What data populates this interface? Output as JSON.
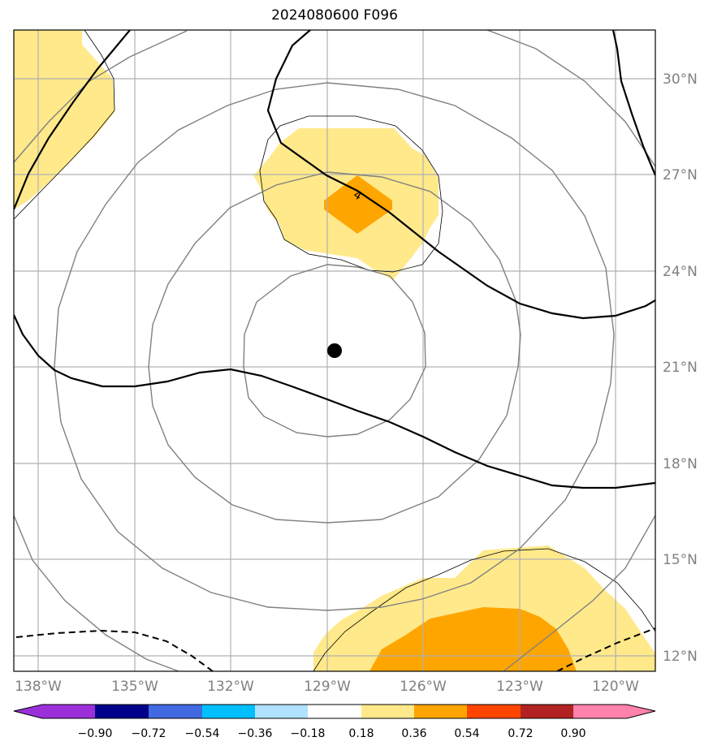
{
  "title": "2024080600 F096",
  "map": {
    "lon_ticks": [
      "138°W",
      "135°W",
      "132°W",
      "129°W",
      "126°W",
      "123°W",
      "120°W"
    ],
    "lat_ticks": [
      "30°N",
      "27°N",
      "24°N",
      "21°N",
      "18°N",
      "15°N",
      "12°N"
    ],
    "contour_label": "4",
    "colors": {
      "fill_036": "#ffe98a",
      "fill_054": "#ffa500",
      "contour_bold": "#000000",
      "contour_gray": "#808080",
      "grid": "#b0b0b0",
      "center_marker": "#000000"
    }
  },
  "colorbar": {
    "labels": [
      "−0.90",
      "−0.72",
      "−0.54",
      "−0.36",
      "−0.18",
      "0.18",
      "0.36",
      "0.54",
      "0.72",
      "0.90"
    ],
    "colors": [
      "#9b30d9",
      "#00008b",
      "#4169e1",
      "#00bfff",
      "#b0e2ff",
      "#ffffff",
      "#ffe98a",
      "#ffa500",
      "#ff4500",
      "#b22222",
      "#ff82ab"
    ]
  }
}
